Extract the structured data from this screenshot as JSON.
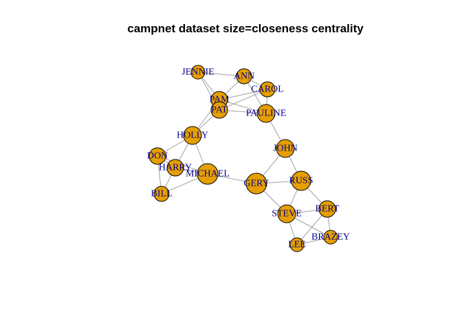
{
  "title": "campnet dataset size=closeness centrality",
  "colors": {
    "node_fill": "#E69F00",
    "edge": "#A0A0A0",
    "label": "#00008B"
  },
  "nodes": [
    {
      "id": "JENNIE",
      "label": "JENNIE"
    },
    {
      "id": "ANN",
      "label": "ANN"
    },
    {
      "id": "CAROL",
      "label": "CAROL"
    },
    {
      "id": "PAM",
      "label": "PAM"
    },
    {
      "id": "PAT",
      "label": "PAT"
    },
    {
      "id": "PAULINE",
      "label": "PAULINE"
    },
    {
      "id": "HOLLY",
      "label": "HOLLY"
    },
    {
      "id": "JOHN",
      "label": "JOHN"
    },
    {
      "id": "DON",
      "label": "DON"
    },
    {
      "id": "HARRY",
      "label": "HARRY"
    },
    {
      "id": "MICHAEL",
      "label": "MICHAEL"
    },
    {
      "id": "GERY",
      "label": "GERY"
    },
    {
      "id": "RUSS",
      "label": "RUSS"
    },
    {
      "id": "BILL",
      "label": "BILL"
    },
    {
      "id": "BERT",
      "label": "BERT"
    },
    {
      "id": "STEVE",
      "label": "STEVE"
    },
    {
      "id": "BRAZEY",
      "label": "BRAZEY"
    },
    {
      "id": "LEE",
      "label": "LEE"
    }
  ],
  "edges": [
    [
      "JENNIE",
      "ANN"
    ],
    [
      "JENNIE",
      "PAM"
    ],
    [
      "JENNIE",
      "PAT"
    ],
    [
      "ANN",
      "PAM"
    ],
    [
      "ANN",
      "PAULINE"
    ],
    [
      "ANN",
      "CAROL"
    ],
    [
      "PAM",
      "CAROL"
    ],
    [
      "PAM",
      "PAT"
    ],
    [
      "PAM",
      "PAULINE"
    ],
    [
      "PAT",
      "PAULINE"
    ],
    [
      "PAT",
      "CAROL"
    ],
    [
      "PAT",
      "HOLLY"
    ],
    [
      "CAROL",
      "PAULINE"
    ],
    [
      "PAULINE",
      "JOHN"
    ],
    [
      "HOLLY",
      "PAM"
    ],
    [
      "HOLLY",
      "DON"
    ],
    [
      "HOLLY",
      "HARRY"
    ],
    [
      "HOLLY",
      "MICHAEL"
    ],
    [
      "DON",
      "HARRY"
    ],
    [
      "DON",
      "BILL"
    ],
    [
      "DON",
      "MICHAEL"
    ],
    [
      "HARRY",
      "BILL"
    ],
    [
      "HARRY",
      "MICHAEL"
    ],
    [
      "MICHAEL",
      "BILL"
    ],
    [
      "MICHAEL",
      "GERY"
    ],
    [
      "JOHN",
      "GERY"
    ],
    [
      "JOHN",
      "RUSS"
    ],
    [
      "GERY",
      "RUSS"
    ],
    [
      "GERY",
      "STEVE"
    ],
    [
      "RUSS",
      "STEVE"
    ],
    [
      "RUSS",
      "BERT"
    ],
    [
      "STEVE",
      "BERT"
    ],
    [
      "STEVE",
      "LEE"
    ],
    [
      "BERT",
      "BRAZEY"
    ],
    [
      "BERT",
      "LEE"
    ],
    [
      "BRAZEY",
      "LEE"
    ],
    [
      "STEVE",
      "BRAZEY"
    ]
  ]
}
